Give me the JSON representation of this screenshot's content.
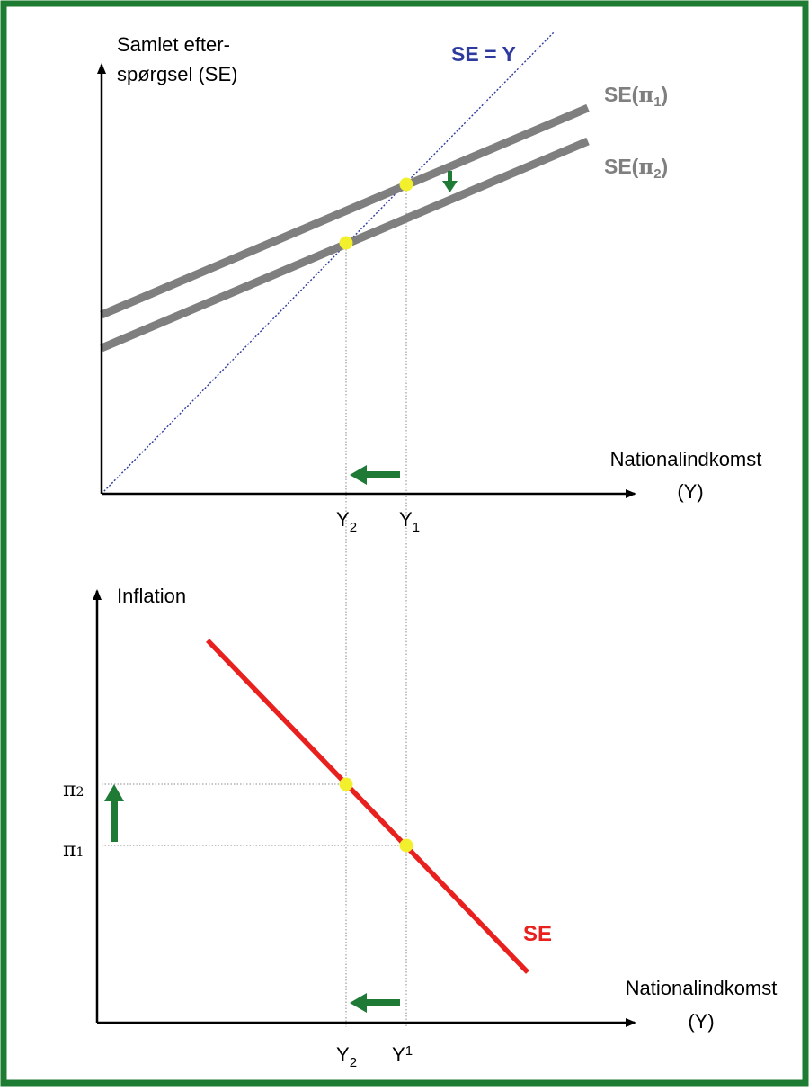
{
  "colors": {
    "frame": "#1e7b32",
    "axis": "#000000",
    "se_curves": "#7f7f7f",
    "se_equals_y": "#2e3a9e",
    "se_inflation": "#e8211f",
    "equilibrium_dot": "#f2ef2d",
    "arrows": "#1f7a36",
    "guide_lines": "#8a8a8a"
  },
  "top_panel": {
    "y_axis_label_line1": "Samlet efter-",
    "y_axis_label_line2": "spørgsel (SE)",
    "x_axis_label_line1": "Nationalindkomst",
    "x_axis_label_line2": "(Y)",
    "line_se_y_label": "SE = Y",
    "curve1": {
      "prefix": "SE(",
      "symbol": "π",
      "sub": "1",
      "suffix": ")"
    },
    "curve2": {
      "prefix": "SE(",
      "symbol": "π",
      "sub": "2",
      "suffix": ")"
    },
    "tick_y2": {
      "base": "Y",
      "sub": "2"
    },
    "tick_y1": {
      "base": "Y",
      "sub": "1"
    },
    "shift_arrow_icon": "arrow-down-icon",
    "income_arrow_icon": "arrow-left-icon"
  },
  "bottom_panel": {
    "y_axis_label": "Inflation",
    "x_axis_label_line1": "Nationalindkomst",
    "x_axis_label_line2": "(Y)",
    "curve_label": "SE",
    "tick_pi2": {
      "base": "π",
      "sub": "2"
    },
    "tick_pi1": {
      "base": "π",
      "sub": "1"
    },
    "tick_y2": {
      "base": "Y",
      "sub": "2"
    },
    "tick_y1": {
      "base": "Y",
      "sub": "1"
    },
    "inflation_arrow_icon": "arrow-up-icon",
    "income_arrow_icon": "arrow-left-icon"
  }
}
